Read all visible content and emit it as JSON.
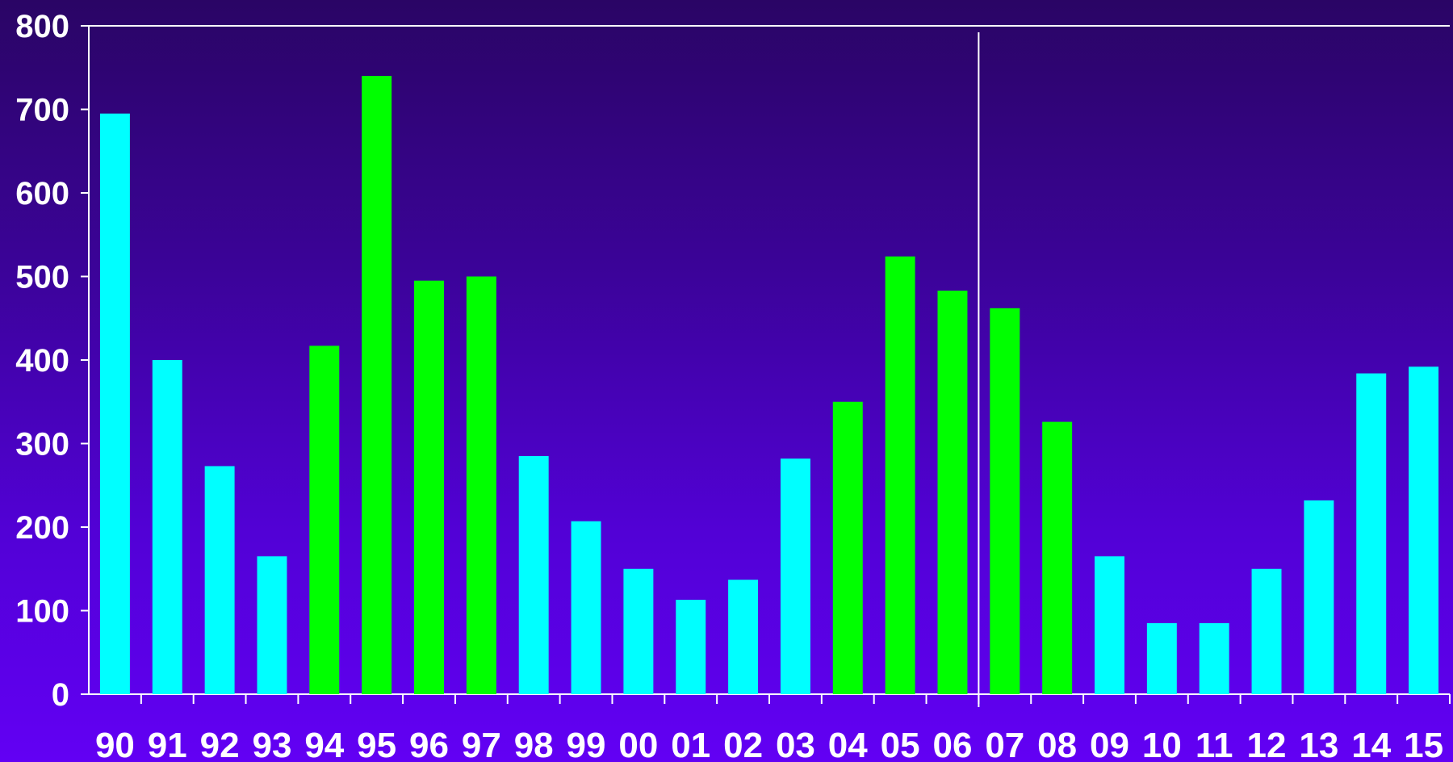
{
  "chart_data": {
    "type": "bar",
    "title": "",
    "xlabel": "",
    "ylabel": "",
    "ylim": [
      0,
      800
    ],
    "y_ticks": [
      "0",
      "100",
      "200",
      "300",
      "400",
      "500",
      "600",
      "700",
      "800"
    ],
    "categories": [
      "90",
      "91",
      "92",
      "93",
      "94",
      "95",
      "96",
      "97",
      "98",
      "99",
      "00",
      "01",
      "02",
      "03",
      "04",
      "05",
      "06",
      "07",
      "08",
      "09",
      "10",
      "11",
      "12",
      "13",
      "14",
      "15"
    ],
    "values": [
      695,
      400,
      273,
      165,
      417,
      740,
      495,
      500,
      285,
      207,
      150,
      113,
      137,
      282,
      350,
      524,
      483,
      462,
      326,
      165,
      85,
      85,
      150,
      232,
      384,
      392
    ],
    "bar_colors": [
      "cyan",
      "cyan",
      "cyan",
      "cyan",
      "green",
      "green",
      "green",
      "green",
      "cyan",
      "cyan",
      "cyan",
      "cyan",
      "cyan",
      "cyan",
      "green",
      "green",
      "green",
      "green",
      "green",
      "cyan",
      "cyan",
      "cyan",
      "cyan",
      "cyan",
      "cyan",
      "cyan"
    ],
    "colors": {
      "cyan": "#00ffff",
      "green": "#00ff00",
      "axis": "#ffffff",
      "text": "#ffffff"
    },
    "divider_after_category": "06",
    "grid": false,
    "legend": "none"
  }
}
